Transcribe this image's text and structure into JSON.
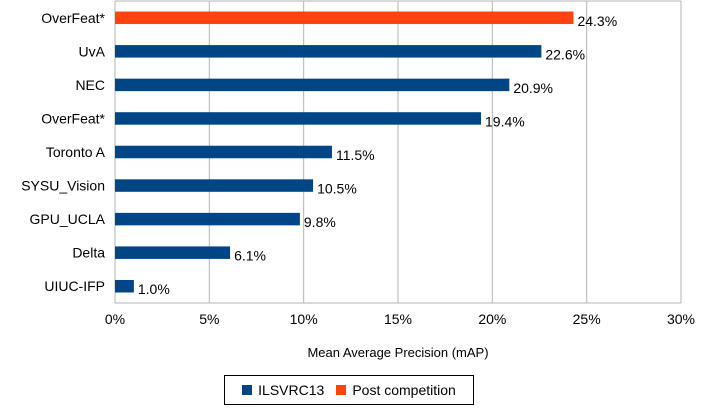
{
  "chart_data": {
    "type": "bar",
    "orientation": "horizontal",
    "title": "",
    "xlabel": "Mean Average Precision (mAP)",
    "ylabel": "",
    "xlim": [
      0,
      30
    ],
    "x_ticks": [
      0,
      5,
      10,
      15,
      20,
      25,
      30
    ],
    "tick_labels": [
      "0%",
      "5%",
      "10%",
      "15%",
      "20%",
      "25%",
      "30%"
    ],
    "grid": true,
    "legend_position": "bottom",
    "series": [
      {
        "name": "ILSVRC13",
        "color": "#004586"
      },
      {
        "name": "Post competition",
        "color": "#ff420e"
      }
    ],
    "bars": [
      {
        "category": "OverFeat*",
        "value": 24.3,
        "label": "24.3%",
        "series": "Post competition"
      },
      {
        "category": "UvA",
        "value": 22.6,
        "label": "22.6%",
        "series": "ILSVRC13"
      },
      {
        "category": "NEC",
        "value": 20.9,
        "label": "20.9%",
        "series": "ILSVRC13"
      },
      {
        "category": "OverFeat*",
        "value": 19.4,
        "label": "19.4%",
        "series": "ILSVRC13"
      },
      {
        "category": "Toronto A",
        "value": 11.5,
        "label": "11.5%",
        "series": "ILSVRC13"
      },
      {
        "category": "SYSU_Vision",
        "value": 10.5,
        "label": "10.5%",
        "series": "ILSVRC13"
      },
      {
        "category": "GPU_UCLA",
        "value": 9.8,
        "label": "9.8%",
        "series": "ILSVRC13"
      },
      {
        "category": "Delta",
        "value": 6.1,
        "label": "6.1%",
        "series": "ILSVRC13"
      },
      {
        "category": "UIUC-IFP",
        "value": 1.0,
        "label": "1.0%",
        "series": "ILSVRC13"
      }
    ]
  }
}
